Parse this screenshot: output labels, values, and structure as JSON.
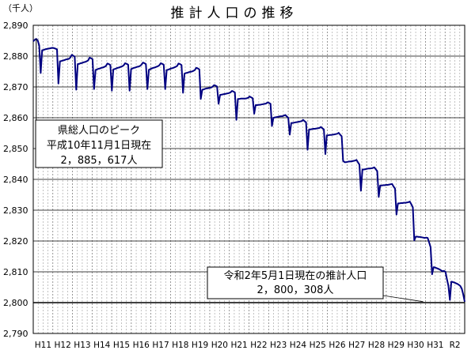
{
  "chart_data": {
    "type": "line",
    "title": "推計人口の推移",
    "unit_label": "（千人）",
    "ylim": [
      2790,
      2890
    ],
    "y_ticks": [
      "2,790",
      "2,800",
      "2,810",
      "2,820",
      "2,830",
      "2,840",
      "2,850",
      "2,860",
      "2,870",
      "2,880",
      "2,890"
    ],
    "x_ticks": [
      "H11",
      "H12",
      "H13",
      "H14",
      "H15",
      "H16",
      "H17",
      "H18",
      "H19",
      "H20",
      "H21",
      "H22",
      "H23",
      "H24",
      "H25",
      "H26",
      "H27",
      "H28",
      "H29",
      "H30",
      "H31",
      "R2"
    ],
    "grid": true,
    "line_color": "#000080",
    "reference_line": 2800,
    "series": [
      {
        "values": [
          2884.8,
          2885.3,
          2885.6,
          2885.1,
          2883.5,
          2874.5,
          2881.9,
          2882.0,
          2882.2,
          2882.3,
          2882.4,
          2882.5,
          2882.6,
          2882.7,
          2882.6,
          2882.4,
          2882.2,
          2871.1,
          2878.3,
          2878.4,
          2878.6,
          2878.7,
          2878.9,
          2879.0,
          2879.1,
          2879.5,
          2880.4,
          2880.1,
          2879.8,
          2869.1,
          2877.4,
          2877.5,
          2877.7,
          2877.8,
          2878.0,
          2878.1,
          2878.3,
          2878.6,
          2879.5,
          2879.3,
          2879.0,
          2869.3,
          2875.5,
          2875.7,
          2875.9,
          2876.0,
          2876.2,
          2876.3,
          2876.5,
          2876.8,
          2877.6,
          2877.4,
          2877.1,
          2868.8,
          2875.7,
          2875.8,
          2876.0,
          2876.2,
          2876.3,
          2876.5,
          2876.7,
          2877.0,
          2877.7,
          2877.5,
          2877.2,
          2868.8,
          2875.8,
          2876.0,
          2876.2,
          2876.3,
          2876.5,
          2876.6,
          2876.8,
          2877.2,
          2877.9,
          2877.7,
          2877.4,
          2869.3,
          2875.6,
          2875.8,
          2876.0,
          2876.2,
          2876.3,
          2876.5,
          2876.7,
          2877.0,
          2877.7,
          2877.5,
          2877.2,
          2869.3,
          2875.5,
          2875.6,
          2875.8,
          2876.0,
          2876.1,
          2876.3,
          2876.5,
          2876.8,
          2877.6,
          2877.4,
          2877.1,
          2868.1,
          2874.3,
          2874.5,
          2874.6,
          2874.8,
          2874.9,
          2875.0,
          2875.2,
          2875.5,
          2876.2,
          2876.0,
          2875.7,
          2866.1,
          2869.1,
          2869.2,
          2869.4,
          2869.5,
          2869.6,
          2869.7,
          2869.8,
          2870.1,
          2870.6,
          2870.4,
          2870.1,
          2864.5,
          2867.4,
          2867.5,
          2867.6,
          2867.7,
          2867.8,
          2867.9,
          2868.0,
          2868.2,
          2868.7,
          2868.5,
          2868.2,
          2859.3,
          2866.1,
          2866.1,
          2866.2,
          2866.2,
          2866.2,
          2866.2,
          2866.3,
          2866.5,
          2866.9,
          2866.6,
          2866.3,
          2861.3,
          2864.1,
          2864.1,
          2864.2,
          2864.2,
          2864.3,
          2864.4,
          2864.5,
          2864.6,
          2865.0,
          2864.8,
          2864.5,
          2857.3,
          2860.0,
          2860.1,
          2860.2,
          2860.3,
          2860.4,
          2860.5,
          2860.5,
          2860.7,
          2860.9,
          2860.4,
          2860.0,
          2854.5,
          2858.3,
          2858.3,
          2858.4,
          2858.5,
          2858.6,
          2858.7,
          2858.8,
          2858.9,
          2859.3,
          2858.9,
          2858.5,
          2849.6,
          2856.2,
          2856.2,
          2856.3,
          2856.4,
          2856.4,
          2856.5,
          2856.6,
          2856.7,
          2857.0,
          2856.6,
          2856.2,
          2848.2,
          2854.3,
          2854.3,
          2854.4,
          2854.4,
          2854.5,
          2854.6,
          2854.7,
          2854.8,
          2855.1,
          2854.5,
          2854.0,
          2846.0,
          2845.6,
          2845.6,
          2845.7,
          2845.8,
          2845.8,
          2845.9,
          2846.0,
          2846.1,
          2846.3,
          2845.5,
          2844.8,
          2836.3,
          2843.2,
          2843.2,
          2843.3,
          2843.4,
          2843.5,
          2843.5,
          2843.6,
          2843.7,
          2843.9,
          2843.3,
          2842.7,
          2834.3,
          2838.0,
          2838.0,
          2838.1,
          2838.1,
          2838.2,
          2838.2,
          2838.3,
          2838.4,
          2838.5,
          2837.7,
          2837.0,
          2828.6,
          2832.2,
          2832.2,
          2832.3,
          2832.3,
          2832.4,
          2832.4,
          2832.5,
          2832.6,
          2832.8,
          2831.9,
          2830.9,
          2820.2,
          2821.4,
          2821.4,
          2821.3,
          2821.3,
          2821.2,
          2821.1,
          2821.0,
          2821.1,
          2821.0,
          2819.5,
          2818.0,
          2809.2,
          2811.5,
          2811.4,
          2811.2,
          2811.0,
          2810.8,
          2810.5,
          2810.2,
          2810.3,
          2810.0,
          2807.7,
          2805.5,
          2800.9,
          2806.8,
          2806.7,
          2806.5,
          2806.3,
          2806.1,
          2805.8,
          2805.4,
          2804.5,
          2802.7,
          2800.3
        ]
      }
    ],
    "annotations": [
      {
        "lines": [
          "県総人口のピーク",
          "平成10年11月1日現在",
          "2，885，617人"
        ],
        "x_index": 2,
        "value": 2885.6
      },
      {
        "lines": [
          "令和2年5月1日現在の推計人口",
          "2，800，308人"
        ],
        "x_index": 263,
        "value": 2800.3
      }
    ]
  }
}
